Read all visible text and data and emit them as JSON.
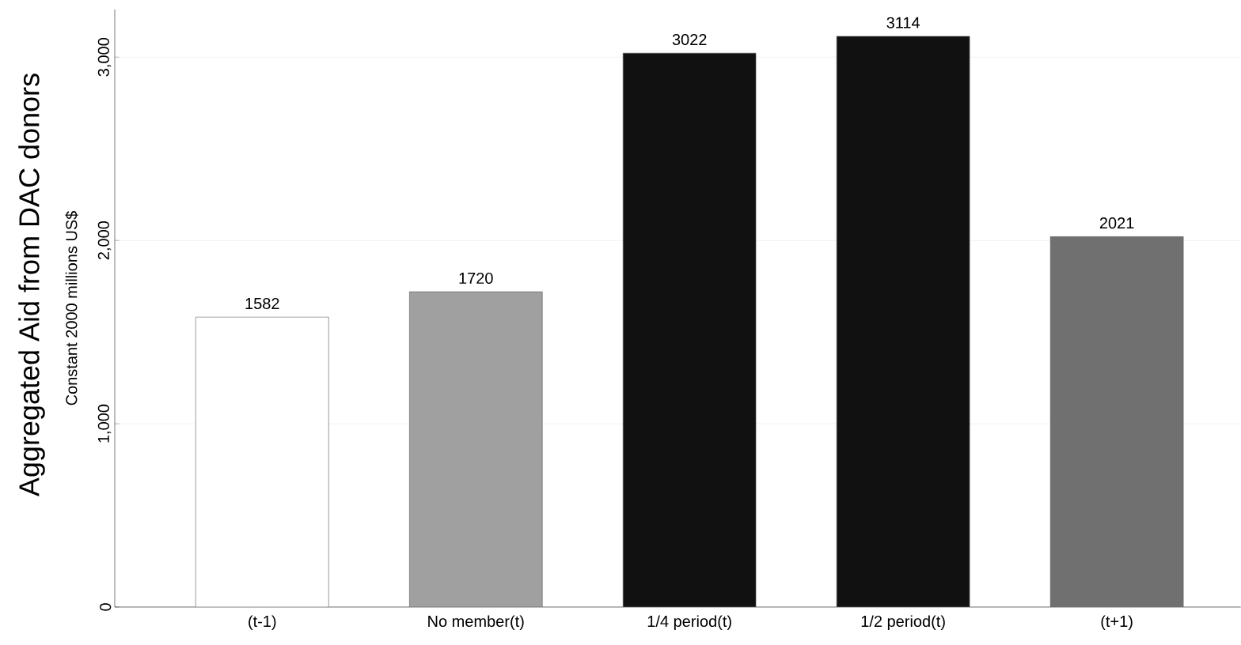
{
  "chart_data": {
    "type": "bar",
    "title": "Aggregated Aid from DAC donors",
    "ylabel": "Constant 2000 millions US$",
    "categories": [
      "(t-1)",
      "No member(t)",
      "1/4 period(t)",
      "1/2 period(t)",
      "(t+1)"
    ],
    "values": [
      1582,
      1720,
      3022,
      3114,
      2021
    ],
    "colors": [
      "#ffffff",
      "#a0a0a0",
      "#111111",
      "#111111",
      "#707070"
    ],
    "ylim": [
      0,
      3260
    ],
    "yticks": [
      0,
      {
        "value": 1000,
        "label": "1,000"
      },
      {
        "value": 2000,
        "label": "2,000"
      },
      {
        "value": 3000,
        "label": "3,000"
      }
    ],
    "grid": "y",
    "data_labels": true
  }
}
